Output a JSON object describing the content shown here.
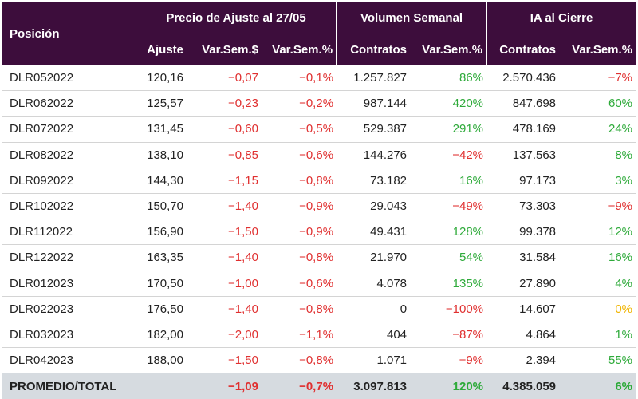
{
  "header": {
    "posicion": "Posición",
    "group_precio": "Precio de Ajuste al 27/05",
    "group_volumen": "Volumen Semanal",
    "group_ia": "IA al Cierre",
    "col_ajuste": "Ajuste",
    "col_var_pesos": "Var.Sem.$",
    "col_var_pct": "Var.Sem.%",
    "col_contratos_vol": "Contratos",
    "col_var_vol": "Var.Sem.%",
    "col_contratos_ia": "Contratos",
    "col_var_ia": "Var.Sem.%"
  },
  "rows": [
    [
      "DLR052022",
      "120,16",
      "-0,07",
      "-0,1%",
      "1.257.827",
      "86%",
      "2.570.436",
      "-7%"
    ],
    [
      "DLR062022",
      "125,57",
      "-0,23",
      "-0,2%",
      "987.144",
      "420%",
      "847.698",
      "60%"
    ],
    [
      "DLR072022",
      "131,45",
      "-0,60",
      "-0,5%",
      "529.387",
      "291%",
      "478.169",
      "24%"
    ],
    [
      "DLR082022",
      "138,10",
      "-0,85",
      "-0,6%",
      "144.276",
      "-42%",
      "137.563",
      "8%"
    ],
    [
      "DLR092022",
      "144,30",
      "-1,15",
      "-0,8%",
      "73.182",
      "16%",
      "97.173",
      "3%"
    ],
    [
      "DLR102022",
      "150,70",
      "-1,40",
      "-0,9%",
      "29.043",
      "-49%",
      "73.303",
      "-9%"
    ],
    [
      "DLR112022",
      "156,90",
      "-1,50",
      "-0,9%",
      "49.431",
      "128%",
      "99.378",
      "12%"
    ],
    [
      "DLR122022",
      "163,35",
      "-1,40",
      "-0,8%",
      "21.970",
      "54%",
      "31.584",
      "16%"
    ],
    [
      "DLR012023",
      "170,50",
      "-1,00",
      "-0,6%",
      "4.078",
      "135%",
      "27.890",
      "4%"
    ],
    [
      "DLR022023",
      "176,50",
      "-1,40",
      "-0,8%",
      "0",
      "-100%",
      "14.607",
      "0%"
    ],
    [
      "DLR032023",
      "182,00",
      "-2,00",
      "-1,1%",
      "404",
      "-87%",
      "4.864",
      "1%"
    ],
    [
      "DLR042023",
      "188,00",
      "-1,50",
      "-0,8%",
      "1.071",
      "-9%",
      "2.394",
      "55%"
    ]
  ],
  "total": [
    "PROMEDIO/TOTAL",
    "",
    "-1,09",
    "-0,7%",
    "3.097.813",
    "120%",
    "4.385.059",
    "6%"
  ],
  "colors": {
    "header_bg": "#3d0d3c",
    "negative": "#e03030",
    "positive": "#2eaa3a",
    "zero": "#f0b400",
    "total_bg": "#d6dbe0"
  }
}
